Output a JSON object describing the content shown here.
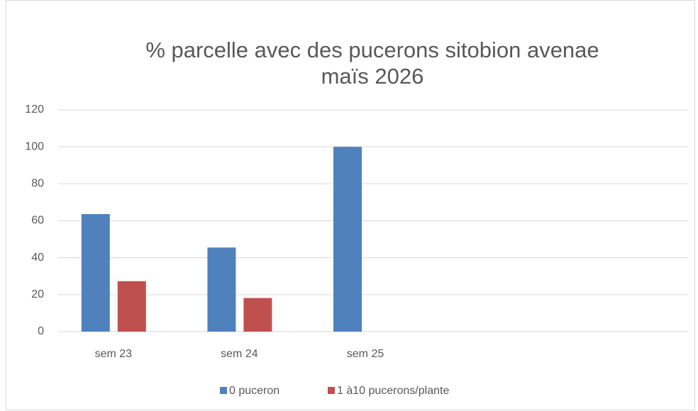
{
  "chart_data": {
    "type": "bar",
    "title": "% parcelle avec des pucerons sitobion avenae",
    "subtitle": "maïs 2026",
    "categories": [
      "sem 23",
      "sem 24",
      "sem 25",
      null,
      null
    ],
    "series": [
      {
        "name": "0 puceron",
        "color": "#4f81bd",
        "values": [
          63.6,
          45.5,
          100,
          null,
          null
        ]
      },
      {
        "name": "1 à10 pucerons/plante",
        "color": "#c0504d",
        "values": [
          27.3,
          18.2,
          0,
          null,
          null
        ]
      }
    ],
    "ylim": [
      0,
      120
    ],
    "yticks": [
      0,
      20,
      40,
      60,
      80,
      100,
      120
    ],
    "grid": true,
    "legend": "bottom"
  }
}
